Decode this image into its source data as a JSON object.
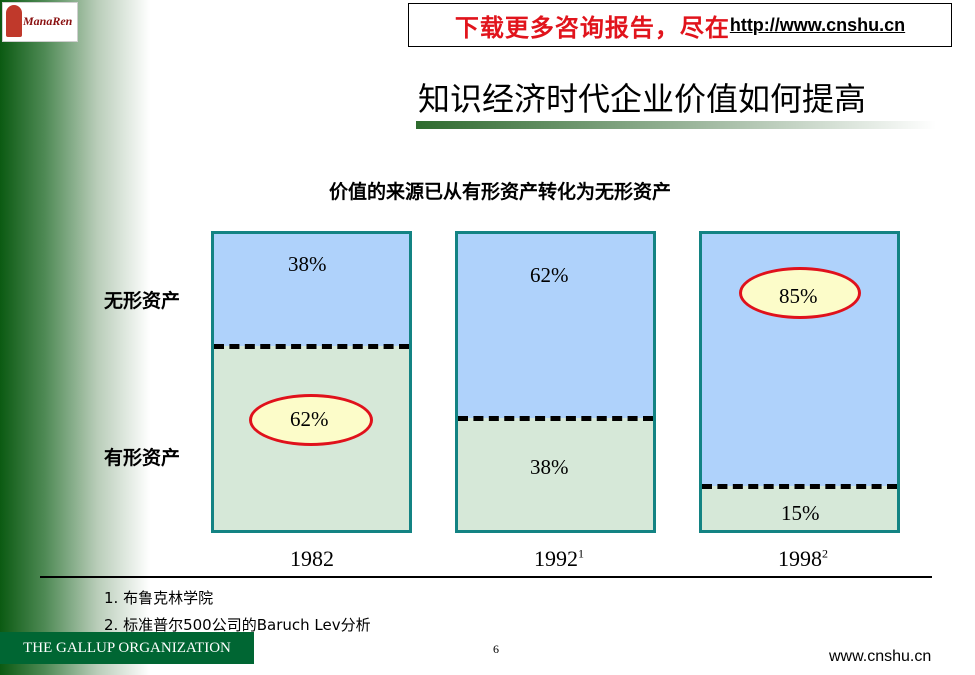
{
  "logo": {
    "text": "ManaRen"
  },
  "banner": {
    "text": "下载更多咨询报告，尽在",
    "url": "http://www.cnshu.cn"
  },
  "title": "知识经济时代企业价值如何提高",
  "chart_data": {
    "type": "bar",
    "stacked": true,
    "title": "价值的来源已从有形资产转化为无形资产",
    "categories": [
      "1982",
      "1992",
      "1998"
    ],
    "category_superscripts": [
      "",
      "1",
      "2"
    ],
    "series": [
      {
        "name": "无形资产",
        "values": [
          38,
          62,
          85
        ],
        "labels": [
          "38%",
          "62%",
          "85%"
        ],
        "color": "#afd2fb"
      },
      {
        "name": "有形资产",
        "values": [
          62,
          38,
          15
        ],
        "labels": [
          "62%",
          "38%",
          "15%"
        ],
        "color": "#d6e8d8"
      }
    ],
    "ylim": [
      0,
      100
    ],
    "highlighted": [
      "1982 有形资产 62%",
      "1998 无形资产 85%"
    ],
    "highlight_color": "#e0111b",
    "border_color": "#138383"
  },
  "footnotes": [
    "1. 布鲁克林学院",
    "2. 标准普尔500公司的Baruch Lev分析"
  ],
  "footer": {
    "org": "THE GALLUP ORGANIZATION",
    "page": "6",
    "site": "www.cnshu.cn"
  }
}
